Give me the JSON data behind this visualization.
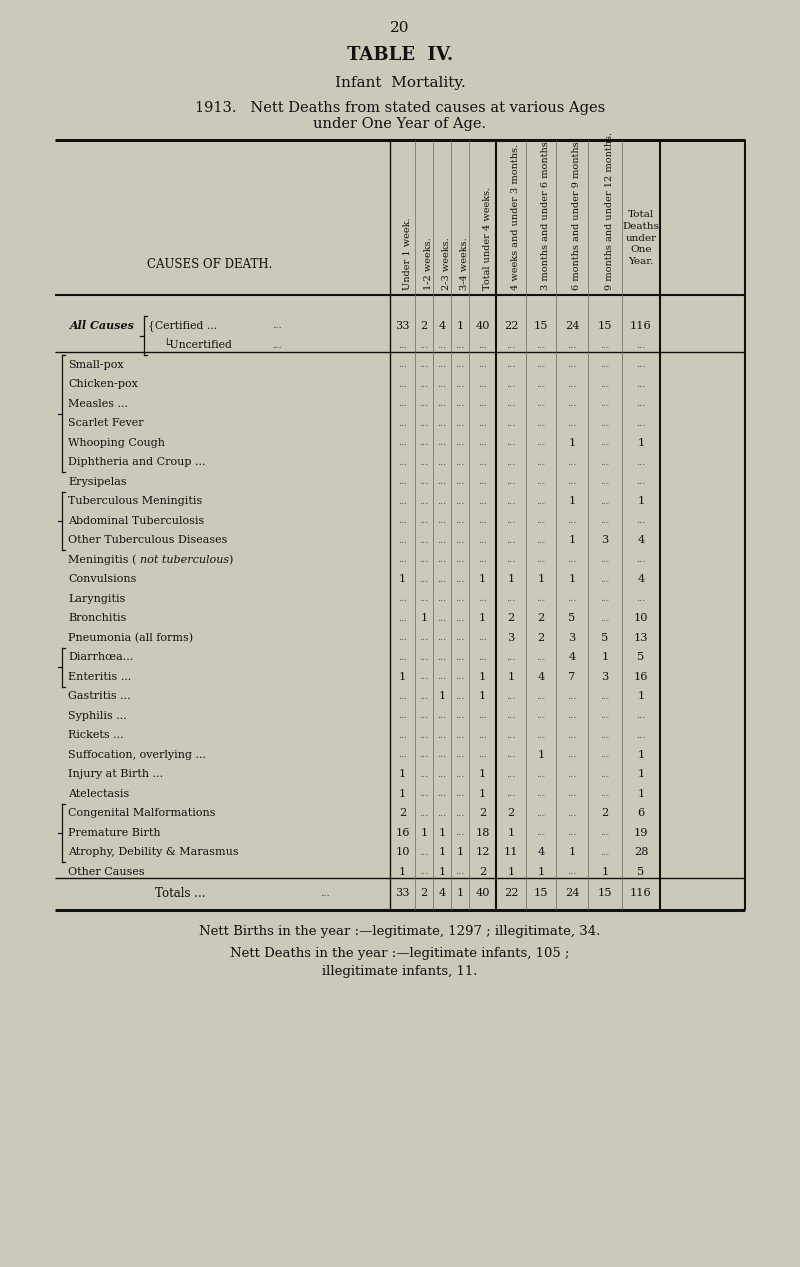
{
  "page_number": "20",
  "title1": "TABLE  IV.",
  "title2": "Infant  Mortality.",
  "title3": "1913.   Nett Deaths from stated causes at various Ages",
  "title4": "under One Year of Age.",
  "rot_headers": [
    "Under 1 week.",
    "1-2 weeks.",
    "2-3 weeks.",
    "3-4 weeks.",
    "Total under 4 weeks.",
    "4 weeks and under 3 months.",
    "3 months and under 6 months.",
    "6 months and under 9 months.",
    "9 months and under 12 months."
  ],
  "last_col_header": "Total\nDeaths\nunder\nOne\nYear.",
  "cause_header": "CAUSES OF DEATH.",
  "rows": [
    {
      "cause": "Certified ...",
      "style": "all_causes_certified",
      "vals": [
        "33",
        "2",
        "4",
        "1",
        "40",
        "22",
        "15",
        "24",
        "15",
        "116"
      ]
    },
    {
      "cause": "Uncertified",
      "style": "all_causes_uncertified",
      "vals": [
        "...",
        "...",
        "...",
        "...",
        "...",
        "...",
        "...",
        "...",
        "...",
        "..."
      ]
    },
    {
      "cause": "Small-pox",
      "style": "inf_open",
      "vals": [
        "...",
        "...",
        "...",
        "...",
        "...",
        "...",
        "...",
        "...",
        "...",
        "..."
      ]
    },
    {
      "cause": "Chicken-pox",
      "style": "inf",
      "vals": [
        "...",
        "...",
        "...",
        "...",
        "...",
        "...",
        "...",
        "...",
        "...",
        "..."
      ]
    },
    {
      "cause": "Measles ...",
      "style": "inf",
      "vals": [
        "...",
        "...",
        "...",
        "...",
        "...",
        "...",
        "...",
        "...",
        "...",
        "..."
      ]
    },
    {
      "cause": "Scarlet Fever",
      "style": "inf",
      "vals": [
        "...",
        "...",
        "...",
        "...",
        "...",
        "...",
        "...",
        "...",
        "...",
        "..."
      ]
    },
    {
      "cause": "Whooping Cough",
      "style": "inf",
      "vals": [
        "...",
        "...",
        "...",
        "...",
        "...",
        "...",
        "...",
        "1",
        "...",
        "1"
      ]
    },
    {
      "cause": "Diphtheria and Croup ...",
      "style": "inf_close",
      "vals": [
        "...",
        "...",
        "...",
        "...",
        "...",
        "...",
        "...",
        "...",
        "...",
        "..."
      ]
    },
    {
      "cause": "Erysipelas",
      "style": "normal",
      "vals": [
        "...",
        "...",
        "...",
        "...",
        "...",
        "...",
        "...",
        "...",
        "...",
        "..."
      ]
    },
    {
      "cause": "Tuberculous Meningitis",
      "style": "tb_open",
      "vals": [
        "...",
        "...",
        "...",
        "...",
        "...",
        "...",
        "...",
        "1",
        "...",
        "1"
      ]
    },
    {
      "cause": "Abdominal Tuberculosis",
      "style": "tb",
      "vals": [
        "...",
        "...",
        "...",
        "...",
        "...",
        "...",
        "...",
        "...",
        "...",
        "..."
      ]
    },
    {
      "cause": "Other Tuberculous Diseases",
      "style": "tb_close",
      "vals": [
        "...",
        "...",
        "...",
        "...",
        "...",
        "...",
        "...",
        "1",
        "3",
        "4"
      ]
    },
    {
      "cause": "Meningitis (not tuberculous)",
      "style": "italic_paren",
      "vals": [
        "...",
        "...",
        "...",
        "...",
        "...",
        "...",
        "...",
        "...",
        "...",
        "..."
      ]
    },
    {
      "cause": "Convulsions",
      "style": "normal",
      "vals": [
        "1",
        "...",
        "...",
        "...",
        "1",
        "1",
        "1",
        "1",
        "...",
        "4"
      ]
    },
    {
      "cause": "Laryngitis",
      "style": "normal",
      "vals": [
        "...",
        "...",
        "...",
        "...",
        "...",
        "...",
        "...",
        "...",
        "...",
        "..."
      ]
    },
    {
      "cause": "Bronchitis",
      "style": "normal",
      "vals": [
        "...",
        "1",
        "...",
        "...",
        "1",
        "2",
        "2",
        "5",
        "...",
        "10"
      ]
    },
    {
      "cause": "Pneumonia (all forms)",
      "style": "normal",
      "vals": [
        "...",
        "...",
        "...",
        "...",
        "...",
        "3",
        "2",
        "3",
        "5",
        "13"
      ]
    },
    {
      "cause": "Diarrhœa...",
      "style": "di_open",
      "vals": [
        "...",
        "...",
        "...",
        "...",
        "...",
        "...",
        "...",
        "4",
        "1",
        "5"
      ]
    },
    {
      "cause": "Enteritis ...",
      "style": "di_close",
      "vals": [
        "1",
        "...",
        "...",
        "...",
        "1",
        "1",
        "4",
        "7",
        "3",
        "16"
      ]
    },
    {
      "cause": "Gastritis ...",
      "style": "normal",
      "vals": [
        "...",
        "...",
        "1",
        "...",
        "1",
        "...",
        "...",
        "...",
        "...",
        "1"
      ]
    },
    {
      "cause": "Syphilis ...",
      "style": "normal",
      "vals": [
        "...",
        "...",
        "...",
        "...",
        "...",
        "...",
        "...",
        "...",
        "...",
        "..."
      ]
    },
    {
      "cause": "Rickets ...",
      "style": "normal",
      "vals": [
        "...",
        "...",
        "...",
        "...",
        "...",
        "...",
        "...",
        "...",
        "...",
        "..."
      ]
    },
    {
      "cause": "Suffocation, overlying ...",
      "style": "normal",
      "vals": [
        "...",
        "...",
        "...",
        "...",
        "...",
        "...",
        "1",
        "...",
        "...",
        "1"
      ]
    },
    {
      "cause": "Injury at Birth ...",
      "style": "normal",
      "vals": [
        "1",
        "...",
        "...",
        "...",
        "1",
        "...",
        "...",
        "...",
        "...",
        "1"
      ]
    },
    {
      "cause": "Atelectasis",
      "style": "normal",
      "vals": [
        "1",
        "...",
        "...",
        "...",
        "1",
        "...",
        "...",
        "...",
        "...",
        "1"
      ]
    },
    {
      "cause": "Congenital Malformations",
      "style": "cg_open",
      "vals": [
        "2",
        "...",
        "...",
        "...",
        "2",
        "2",
        "...",
        "...",
        "2",
        "6"
      ]
    },
    {
      "cause": "Premature Birth",
      "style": "cg",
      "vals": [
        "16",
        "1",
        "1",
        "...",
        "18",
        "1",
        "...",
        "...",
        "...",
        "19"
      ]
    },
    {
      "cause": "Atrophy, Debility & Marasmus",
      "style": "cg_close",
      "vals": [
        "10",
        "...",
        "1",
        "1",
        "12",
        "11",
        "4",
        "1",
        "...",
        "28"
      ]
    },
    {
      "cause": "Other Causes",
      "style": "normal",
      "vals": [
        "1",
        "...",
        "1",
        "...",
        "2",
        "1",
        "1",
        "...",
        "1",
        "5"
      ]
    },
    {
      "cause": "Totals ...",
      "style": "totals",
      "vals": [
        "33",
        "2",
        "4",
        "1",
        "40",
        "22",
        "15",
        "24",
        "15",
        "116"
      ]
    }
  ],
  "footer1": "Nett Births in the year :—legitimate, 1297 ; illegitimate, 34.",
  "footer2": "Nett Deaths in the year :—legitimate infants, 105 ;",
  "footer3": "illegitimate infants, 11.",
  "bg_color": "#cdc9ba",
  "text_color": "#111111"
}
